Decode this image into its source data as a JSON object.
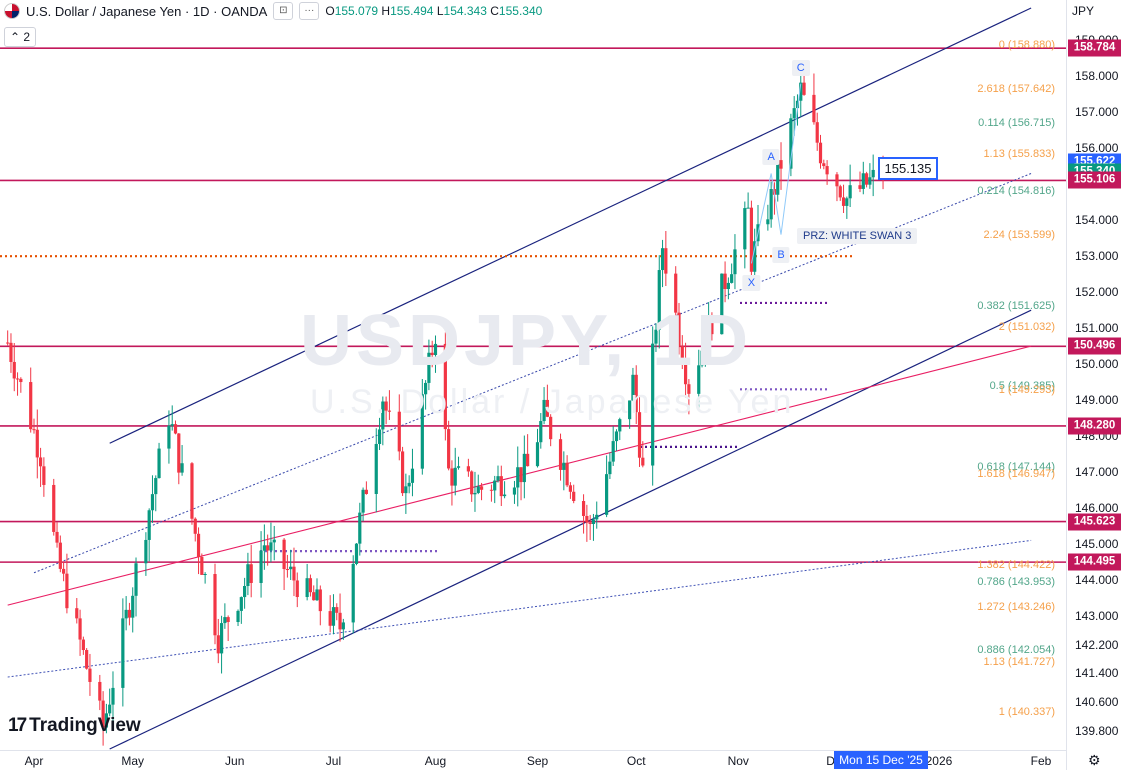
{
  "header": {
    "title": "U.S. Dollar / Japanese Yen · 1D · OANDA",
    "o_label": "O",
    "o": "155.079",
    "h_label": "H",
    "h": "155.494",
    "l_label": "L",
    "l": "154.343",
    "c_label": "C",
    "c": "155.340",
    "indicator_count": "2",
    "currency": "JPY"
  },
  "watermark": {
    "symbol": "USDJPY, 1D",
    "name": "U.S. Dollar / Japanese Yen"
  },
  "logo": {
    "mark": "17",
    "text": "TradingView"
  },
  "cursor_price": "155.135",
  "date_badge": "Mon 15 Dec '25",
  "prz_label": "PRZ: WHITE SWAN 3",
  "pattern_points": [
    "X",
    "A",
    "B",
    "C"
  ],
  "colors": {
    "up": "#089981",
    "down": "#f23645",
    "level": "#c2185b",
    "channel": "#1a237e",
    "fib_orange": "#f5a04a",
    "fib_green": "#52a68a",
    "last_price": "#089981",
    "price_blue": "#2962ff"
  },
  "chart_data": {
    "type": "candlestick",
    "symbol": "USDJPY",
    "timeframe": "1D",
    "ylim": [
      139.3,
      159.9
    ],
    "y_ticks": [
      139.8,
      140.6,
      141.4,
      142.2,
      143.0,
      144.0,
      145.0,
      146.0,
      147.0,
      148.0,
      149.0,
      150.0,
      151.0,
      152.0,
      153.0,
      154.0,
      155.0,
      156.0,
      157.0,
      158.0,
      159.0
    ],
    "y_tick_labels": [
      "139.800",
      "140.600",
      "141.400",
      "142.200",
      "143.000",
      "144.000",
      "145.000",
      "146.000",
      "147.000",
      "148.000",
      "149.000",
      "150.000",
      "151.000",
      "152.000",
      "153.000",
      "154.000",
      "155.000",
      "156.000",
      "157.000",
      "158.000",
      "159.000"
    ],
    "x_labels": [
      {
        "label": "Apr",
        "date": "2025-04-01"
      },
      {
        "label": "May",
        "date": "2025-05-01"
      },
      {
        "label": "Jun",
        "date": "2025-06-01"
      },
      {
        "label": "Jul",
        "date": "2025-07-01"
      },
      {
        "label": "Aug",
        "date": "2025-08-01"
      },
      {
        "label": "Sep",
        "date": "2025-09-01"
      },
      {
        "label": "Oct",
        "date": "2025-10-01"
      },
      {
        "label": "Nov",
        "date": "2025-11-01"
      },
      {
        "label": "Dec",
        "date": "2025-12-01"
      },
      {
        "label": "2026",
        "date": "2026-01-01"
      },
      {
        "label": "Feb",
        "date": "2026-02-01"
      }
    ],
    "key_path": [
      [
        "2025-03-24",
        150.6
      ],
      [
        "2025-04-03",
        147.5
      ],
      [
        "2025-04-08",
        144.6
      ],
      [
        "2025-04-22",
        139.9
      ],
      [
        "2025-05-12",
        148.6
      ],
      [
        "2025-05-27",
        142.4
      ],
      [
        "2025-06-10",
        145.0
      ],
      [
        "2025-06-24",
        143.5
      ],
      [
        "2025-07-03",
        142.7
      ],
      [
        "2025-07-16",
        149.1
      ],
      [
        "2025-07-23",
        146.4
      ],
      [
        "2025-08-01",
        150.9
      ],
      [
        "2025-08-05",
        147.0
      ],
      [
        "2025-08-14",
        146.5
      ],
      [
        "2025-08-29",
        147.1
      ],
      [
        "2025-09-03",
        148.6
      ],
      [
        "2025-09-17",
        145.4
      ],
      [
        "2025-09-30",
        149.5
      ],
      [
        "2025-10-03",
        147.0
      ],
      [
        "2025-10-09",
        153.3
      ],
      [
        "2025-10-17",
        149.4
      ],
      [
        "2025-11-04",
        154.2
      ],
      [
        "2025-11-05",
        152.9
      ],
      [
        "2025-11-11",
        154.6
      ],
      [
        "2025-11-20",
        157.6
      ],
      [
        "2025-11-26",
        155.9
      ],
      [
        "2025-12-04",
        154.6
      ],
      [
        "2025-12-15",
        155.34
      ]
    ],
    "horizontal_levels": [
      158.784,
      155.106,
      150.496,
      148.28,
      145.623,
      144.495
    ],
    "price_labels": [
      {
        "value": 158.784,
        "text": "158.784",
        "color": "#c2185b"
      },
      {
        "value": 155.622,
        "text": "155.622",
        "color": "#2962ff"
      },
      {
        "value": 155.34,
        "text": "155.340",
        "color": "#089981"
      },
      {
        "value": 155.106,
        "text": "155.106",
        "color": "#c2185b"
      },
      {
        "value": 150.496,
        "text": "150.496",
        "color": "#c2185b"
      },
      {
        "value": 148.28,
        "text": "148.280",
        "color": "#c2185b"
      },
      {
        "value": 145.623,
        "text": "145.623",
        "color": "#c2185b"
      },
      {
        "value": 144.495,
        "text": "144.495",
        "color": "#c2185b"
      }
    ],
    "fib_labels": [
      {
        "text": "0 (158.880)",
        "value": 158.88,
        "color": "#f5a04a"
      },
      {
        "text": "2.618 (157.642)",
        "value": 157.642,
        "color": "#f5a04a"
      },
      {
        "text": "0.114 (156.715)",
        "value": 156.715,
        "color": "#52a68a"
      },
      {
        "text": "1.13 (155.833)",
        "value": 155.833,
        "color": "#f5a04a"
      },
      {
        "text": "0.214 (154.816)",
        "value": 154.816,
        "color": "#52a68a"
      },
      {
        "text": "2.24 (153.599)",
        "value": 153.599,
        "color": "#f5a04a"
      },
      {
        "text": "0.382 (151.625)",
        "value": 151.625,
        "color": "#52a68a"
      },
      {
        "text": "2 (151.032)",
        "value": 151.032,
        "color": "#f5a04a"
      },
      {
        "text": "0.5 (149.385)",
        "value": 149.385,
        "color": "#52a68a"
      },
      {
        "text": "1 (149.293)",
        "value": 149.293,
        "color": "#f5a04a"
      },
      {
        "text": "0.618 (147.144)",
        "value": 147.144,
        "color": "#52a68a"
      },
      {
        "text": "1.618 (146.947)",
        "value": 146.947,
        "color": "#f5a04a"
      },
      {
        "text": "1.382 (144.422)",
        "value": 144.422,
        "color": "#f5a04a"
      },
      {
        "text": "0.786 (143.953)",
        "value": 143.953,
        "color": "#52a68a"
      },
      {
        "text": "1.272 (143.246)",
        "value": 143.246,
        "color": "#f5a04a"
      },
      {
        "text": "0.886 (142.054)",
        "value": 142.054,
        "color": "#52a68a"
      },
      {
        "text": "1.13 (141.727)",
        "value": 141.727,
        "color": "#f5a04a"
      },
      {
        "text": "1 (140.337)",
        "value": 140.337,
        "color": "#f5a04a"
      }
    ],
    "channel_upper": [
      [
        "2025-04-24",
        147.8
      ],
      [
        "2026-01-29",
        159.9
      ]
    ],
    "channel_lower": [
      [
        "2025-04-24",
        139.3
      ],
      [
        "2026-01-29",
        151.5
      ]
    ],
    "channel_mid_dotted": [
      [
        "2025-04-01",
        144.2
      ],
      [
        "2026-01-29",
        155.3
      ]
    ],
    "trend_pink": [
      [
        "2025-03-24",
        143.3
      ],
      [
        "2026-01-29",
        150.5
      ]
    ],
    "trend_blue_dotted": [
      [
        "2025-03-24",
        141.3
      ],
      [
        "2026-01-29",
        145.1
      ]
    ],
    "pattern_xabc": [
      [
        "2025-11-05",
        152.8
      ],
      [
        "2025-11-11",
        155.3
      ],
      [
        "2025-11-14",
        153.6
      ],
      [
        "2025-11-20",
        157.8
      ]
    ]
  }
}
